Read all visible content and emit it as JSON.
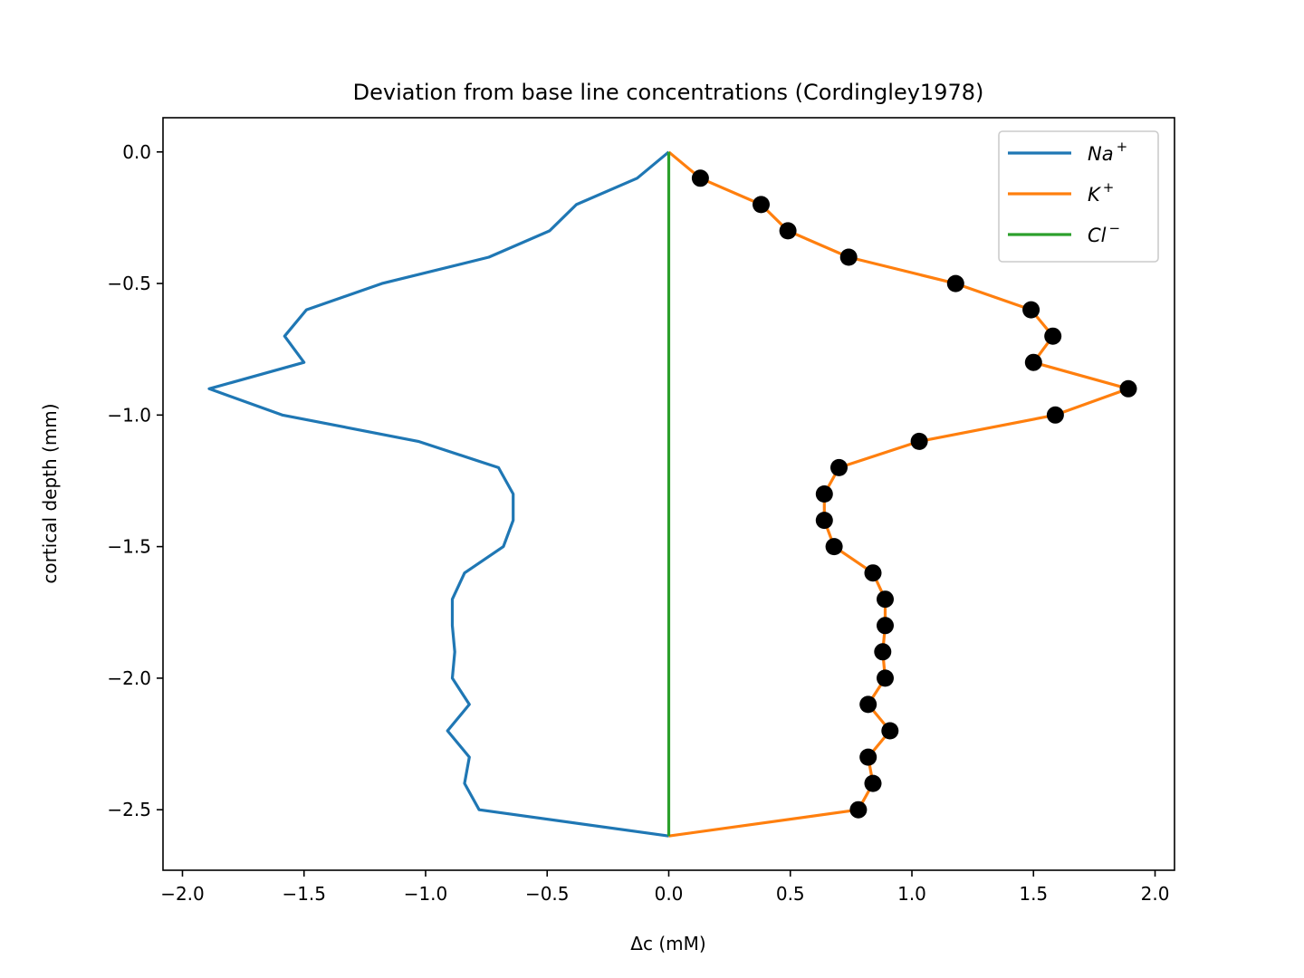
{
  "chart_data": {
    "type": "line",
    "title": "Deviation from base line concentrations (Cordingley1978)",
    "xlabel": "Δc (mM)",
    "ylabel": "cortical depth (mm)",
    "xlim": [
      -2.08,
      2.08
    ],
    "ylim": [
      -2.73,
      0.13
    ],
    "grid": false,
    "legend_position": "top-right",
    "x_ticks": [
      -2.0,
      -1.5,
      -1.0,
      -0.5,
      0.0,
      0.5,
      1.0,
      1.5,
      2.0
    ],
    "x_tick_labels": [
      "−2.0",
      "−1.5",
      "−1.0",
      "−0.5",
      "0.0",
      "0.5",
      "1.0",
      "1.5",
      "2.0"
    ],
    "y_ticks": [
      0.0,
      -0.5,
      -1.0,
      -1.5,
      -2.0,
      -2.5
    ],
    "y_tick_labels": [
      "0.0",
      "−0.5",
      "−1.0",
      "−1.5",
      "−2.0",
      "−2.5"
    ],
    "series": [
      {
        "name": "Na",
        "superscript": "+",
        "color": "#1f77b4",
        "x": [
          0.0,
          -0.13,
          -0.38,
          -0.49,
          -0.74,
          -1.18,
          -1.49,
          -1.58,
          -1.5,
          -1.89,
          -1.59,
          -1.03,
          -0.7,
          -0.64,
          -0.64,
          -0.68,
          -0.84,
          -0.89,
          -0.89,
          -0.88,
          -0.89,
          -0.82,
          -0.91,
          -0.82,
          -0.84,
          -0.78,
          0.0
        ],
        "y": [
          0.0,
          -0.1,
          -0.2,
          -0.3,
          -0.4,
          -0.5,
          -0.6,
          -0.7,
          -0.8,
          -0.9,
          -1.0,
          -1.1,
          -1.2,
          -1.3,
          -1.4,
          -1.5,
          -1.6,
          -1.7,
          -1.8,
          -1.9,
          -2.0,
          -2.1,
          -2.2,
          -2.3,
          -2.4,
          -2.5,
          -2.6
        ]
      },
      {
        "name": "K",
        "superscript": "+",
        "color": "#ff7f0e",
        "x": [
          0.0,
          0.13,
          0.38,
          0.49,
          0.74,
          1.18,
          1.49,
          1.58,
          1.5,
          1.89,
          1.59,
          1.03,
          0.7,
          0.64,
          0.64,
          0.68,
          0.84,
          0.89,
          0.89,
          0.88,
          0.89,
          0.82,
          0.91,
          0.82,
          0.84,
          0.78,
          0.0
        ],
        "y": [
          0.0,
          -0.1,
          -0.2,
          -0.3,
          -0.4,
          -0.5,
          -0.6,
          -0.7,
          -0.8,
          -0.9,
          -1.0,
          -1.1,
          -1.2,
          -1.3,
          -1.4,
          -1.5,
          -1.6,
          -1.7,
          -1.8,
          -1.9,
          -2.0,
          -2.1,
          -2.2,
          -2.3,
          -2.4,
          -2.5,
          -2.6
        ]
      },
      {
        "name": "Cl",
        "superscript": "−",
        "color": "#2ca02c",
        "x": [
          0.0,
          0.0
        ],
        "y": [
          0.0,
          -2.6
        ]
      }
    ],
    "markers": {
      "color": "#000000",
      "x": [
        0.13,
        0.38,
        0.49,
        0.74,
        1.18,
        1.49,
        1.58,
        1.5,
        1.89,
        1.59,
        1.03,
        0.7,
        0.64,
        0.64,
        0.68,
        0.84,
        0.89,
        0.89,
        0.88,
        0.89,
        0.82,
        0.91,
        0.82,
        0.84,
        0.78
      ],
      "y": [
        -0.1,
        -0.2,
        -0.3,
        -0.4,
        -0.5,
        -0.6,
        -0.7,
        -0.8,
        -0.9,
        -1.0,
        -1.1,
        -1.2,
        -1.3,
        -1.4,
        -1.5,
        -1.6,
        -1.7,
        -1.8,
        -1.9,
        -2.0,
        -2.1,
        -2.2,
        -2.3,
        -2.4,
        -2.5
      ]
    }
  }
}
